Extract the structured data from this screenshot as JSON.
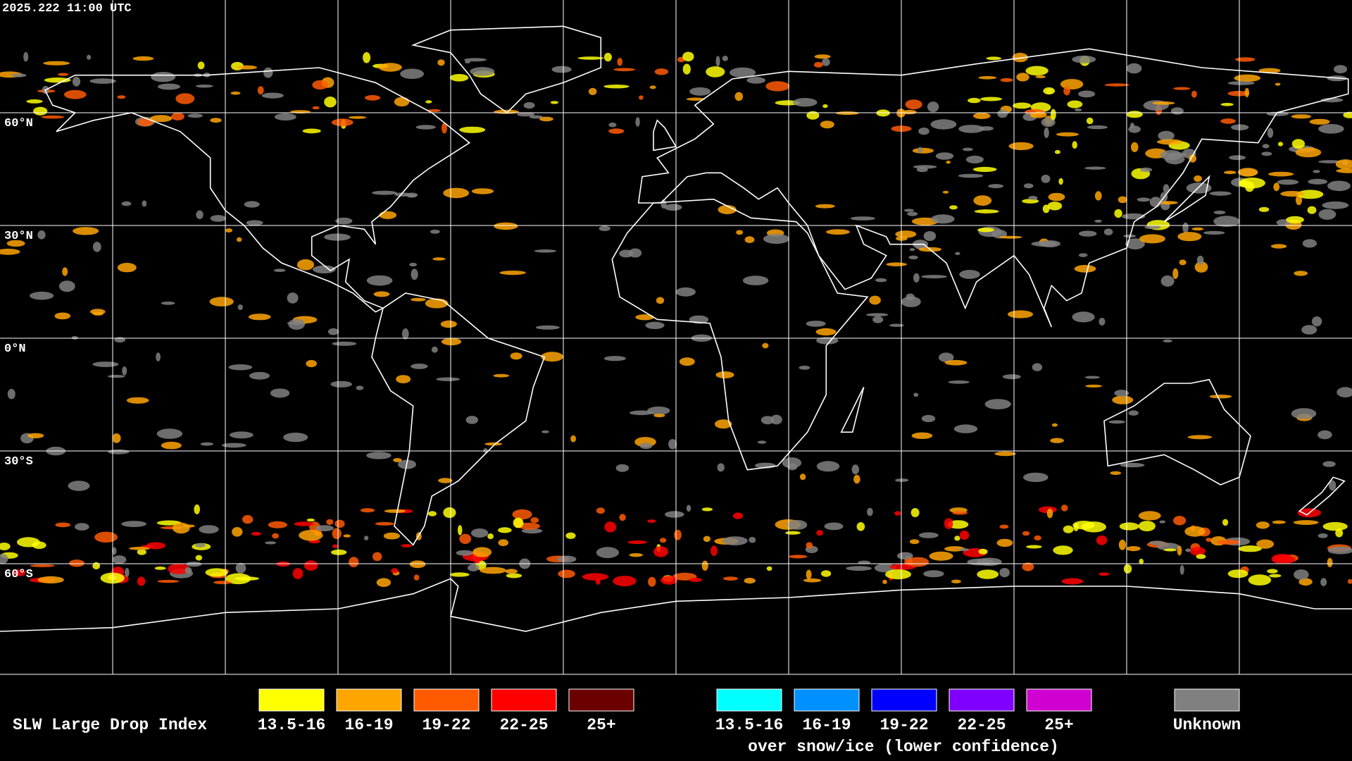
{
  "timestamp": "2025.222 11:00 UTC",
  "latitude_labels": [
    "60°N",
    "30°N",
    "0°N",
    "30°S",
    "60°S"
  ],
  "legend": {
    "title": "SLW Large Drop Index",
    "items": [
      {
        "label": "13.5-16",
        "color": "#ffff00"
      },
      {
        "label": "16-19",
        "color": "#ffa500"
      },
      {
        "label": "19-22",
        "color": "#ff5a00"
      },
      {
        "label": "22-25",
        "color": "#ff0000"
      },
      {
        "label": "25+",
        "color": "#6b0000"
      }
    ],
    "snow_items": [
      {
        "label": "13.5-16",
        "color": "#00ffff"
      },
      {
        "label": "16-19",
        "color": "#0090ff"
      },
      {
        "label": "19-22",
        "color": "#0000ff"
      },
      {
        "label": "22-25",
        "color": "#8000ff"
      },
      {
        "label": "25+",
        "color": "#d000d0"
      }
    ],
    "snow_caption": "over snow/ice (lower confidence)",
    "unknown": {
      "label": "Unknown",
      "color": "#808080"
    }
  }
}
